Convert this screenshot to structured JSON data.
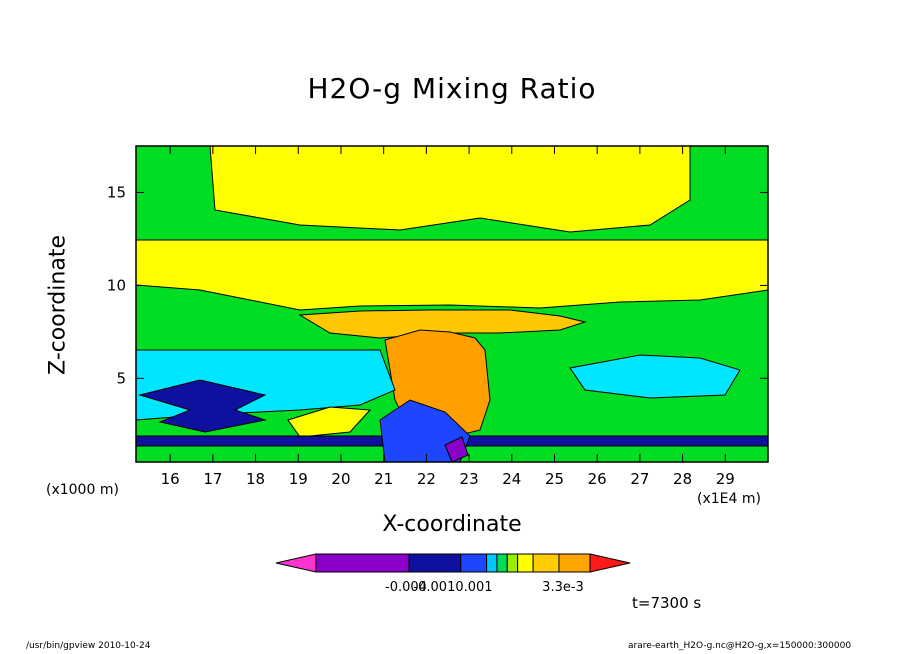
{
  "chart_data": {
    "type": "heatmap",
    "title": "H2O-g Mixing Ratio",
    "xlabel": "X-coordinate",
    "ylabel": "Z-coordinate",
    "x_unit_left": "(x1000 m)",
    "x_unit_right": "(x1E4 m)",
    "xlim": [
      15.2,
      30.0
    ],
    "ylim": [
      0.5,
      17.5
    ],
    "x_ticks": [
      16,
      17,
      18,
      19,
      20,
      21,
      22,
      23,
      24,
      25,
      26,
      27,
      28,
      29
    ],
    "y_ticks": [
      5,
      10,
      15
    ],
    "colorbar": {
      "colors": [
        "#ff33cc",
        "#8a00c8",
        "#1010a0",
        "#1e46ff",
        "#00c8ff",
        "#00dd55",
        "#99ee00",
        "#ffff00",
        "#ffcc00",
        "#ffa500",
        "#ff6600",
        "#ff1a1a"
      ],
      "labels": [
        "-0.004",
        "-0.0010.001",
        "3.3e-3"
      ]
    },
    "contour_colors": {
      "magenta": "#ff33cc",
      "purple": "#8a00c8",
      "navy": "#1010a0",
      "blue": "#1e46ff",
      "cyan": "#00e6ff",
      "green": "#00dd22",
      "yellow": "#ffff00",
      "gold": "#ffc800",
      "orange": "#ffa000"
    }
  },
  "annotation": {
    "time": "t=7300 s"
  },
  "footer": {
    "left": "/usr/bin/gpview  2010-10-24",
    "right": "arare-earth_H2O-g.nc@H2O-g,x=150000:300000"
  }
}
